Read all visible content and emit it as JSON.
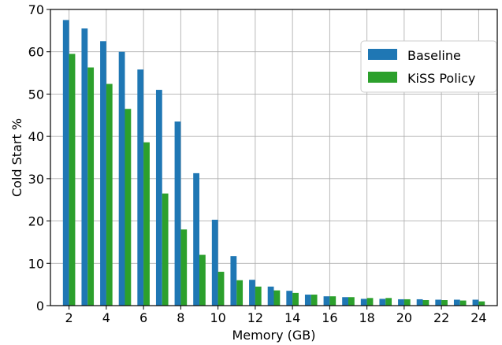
{
  "chart_data": {
    "type": "bar",
    "xlabel": "Memory (GB)",
    "ylabel": "Cold Start %",
    "ylim": [
      0,
      70
    ],
    "yticks": [
      0,
      10,
      20,
      30,
      40,
      50,
      60,
      70
    ],
    "xticks": [
      2,
      4,
      6,
      8,
      10,
      12,
      14,
      16,
      18,
      20,
      22,
      24
    ],
    "x": [
      2,
      3,
      4,
      5,
      6,
      7,
      8,
      9,
      10,
      11,
      12,
      13,
      14,
      15,
      16,
      17,
      18,
      19,
      20,
      21,
      22,
      23,
      24
    ],
    "grid": true,
    "legend_position": "top-right",
    "series": [
      {
        "name": "Baseline",
        "color": "#1f77b4",
        "values": [
          67.5,
          65.5,
          62.5,
          60.0,
          55.8,
          51.0,
          43.5,
          31.3,
          20.3,
          11.7,
          6.1,
          4.5,
          3.5,
          2.6,
          2.2,
          2.0,
          1.6,
          1.6,
          1.5,
          1.5,
          1.4,
          1.4,
          1.4
        ]
      },
      {
        "name": "KiSS Policy",
        "color": "#2ca02c",
        "values": [
          59.5,
          56.3,
          52.4,
          46.5,
          38.6,
          26.5,
          18.0,
          12.0,
          8.0,
          6.0,
          4.5,
          3.6,
          3.0,
          2.6,
          2.2,
          2.0,
          1.8,
          1.8,
          1.5,
          1.3,
          1.3,
          1.2,
          1.0
        ]
      }
    ]
  }
}
